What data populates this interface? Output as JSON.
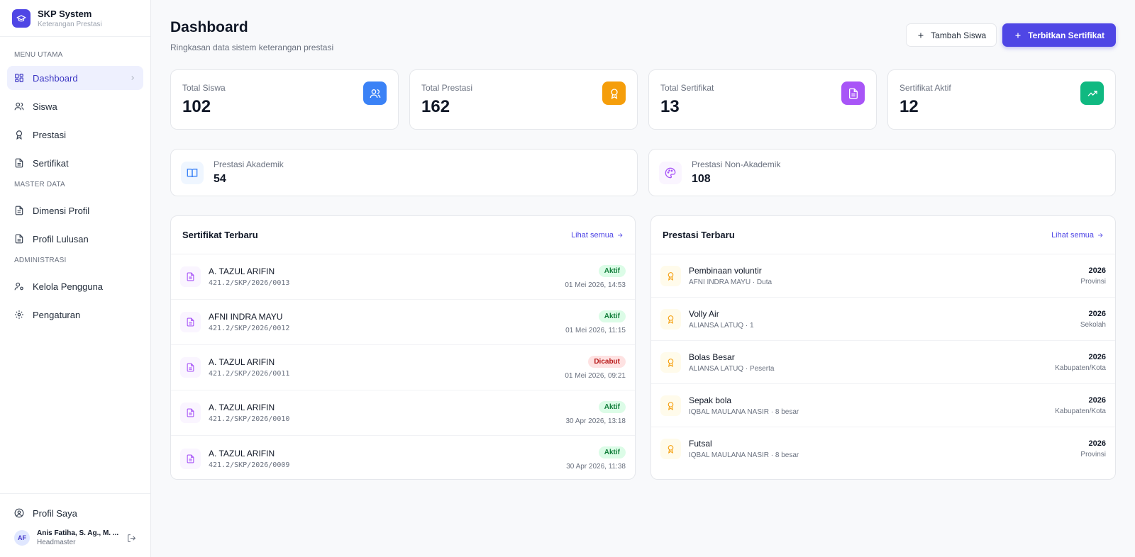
{
  "brand": {
    "title": "SKP System",
    "subtitle": "Keterangan Prestasi"
  },
  "sidebar": {
    "sections": [
      {
        "label": "MENU UTAMA",
        "items": [
          "Dashboard",
          "Siswa",
          "Prestasi",
          "Sertifikat"
        ]
      },
      {
        "label": "MASTER DATA",
        "items": [
          "Dimensi Profil",
          "Profil Lulusan"
        ]
      },
      {
        "label": "ADMINISTRASI",
        "items": [
          "Kelola Pengguna",
          "Pengaturan"
        ]
      }
    ],
    "active": "Dashboard",
    "profile_label": "Profil Saya",
    "user": {
      "initials": "AF",
      "name": "Anis Fatiha, S. Ag., M. ...",
      "role": "Headmaster"
    }
  },
  "header": {
    "title": "Dashboard",
    "subtitle": "Ringkasan data sistem keterangan prestasi",
    "add_student_label": "Tambah Siswa",
    "issue_cert_label": "Terbitkan Sertifikat"
  },
  "stats": [
    {
      "label": "Total Siswa",
      "value": "102",
      "icon": "users-icon",
      "color": "#3b82f6"
    },
    {
      "label": "Total Prestasi",
      "value": "162",
      "icon": "award-icon",
      "color": "#f59e0b"
    },
    {
      "label": "Total Sertifikat",
      "value": "13",
      "icon": "document-icon",
      "color": "#a855f7"
    },
    {
      "label": "Sertifikat Aktif",
      "value": "12",
      "icon": "trending-up-icon",
      "color": "#10b981"
    }
  ],
  "categories": [
    {
      "label": "Prestasi Akademik",
      "value": "54",
      "icon": "book-icon"
    },
    {
      "label": "Prestasi Non-Akademik",
      "value": "108",
      "icon": "palette-icon"
    }
  ],
  "certificates": {
    "title": "Sertifikat Terbaru",
    "see_all": "Lihat semua",
    "items": [
      {
        "name": "A. TAZUL ARIFIN",
        "number": "421.2/SKP/2026/0013",
        "status": "Aktif",
        "date": "01 Mei 2026, 14:53"
      },
      {
        "name": "AFNI INDRA MAYU",
        "number": "421.2/SKP/2026/0012",
        "status": "Aktif",
        "date": "01 Mei 2026, 11:15"
      },
      {
        "name": "A. TAZUL ARIFIN",
        "number": "421.2/SKP/2026/0011",
        "status": "Dicabut",
        "date": "01 Mei 2026, 09:21"
      },
      {
        "name": "A. TAZUL ARIFIN",
        "number": "421.2/SKP/2026/0010",
        "status": "Aktif",
        "date": "30 Apr 2026, 13:18"
      },
      {
        "name": "A. TAZUL ARIFIN",
        "number": "421.2/SKP/2026/0009",
        "status": "Aktif",
        "date": "30 Apr 2026, 11:38"
      }
    ]
  },
  "achievements": {
    "title": "Prestasi Terbaru",
    "see_all": "Lihat semua",
    "items": [
      {
        "title": "Pembinaan voluntir",
        "detail": "AFNI INDRA MAYU · Duta",
        "year": "2026",
        "level": "Provinsi"
      },
      {
        "title": "Volly Air",
        "detail": "ALIANSA LATUQ · 1",
        "year": "2026",
        "level": "Sekolah"
      },
      {
        "title": "Bolas Besar",
        "detail": "ALIANSA LATUQ · Peserta",
        "year": "2026",
        "level": "Kabupaten/Kota"
      },
      {
        "title": "Sepak bola",
        "detail": "IQBAL MAULANA NASIR · 8 besar",
        "year": "2026",
        "level": "Kabupaten/Kota"
      },
      {
        "title": "Futsal",
        "detail": "IQBAL MAULANA NASIR · 8 besar",
        "year": "2026",
        "level": "Provinsi"
      }
    ]
  }
}
